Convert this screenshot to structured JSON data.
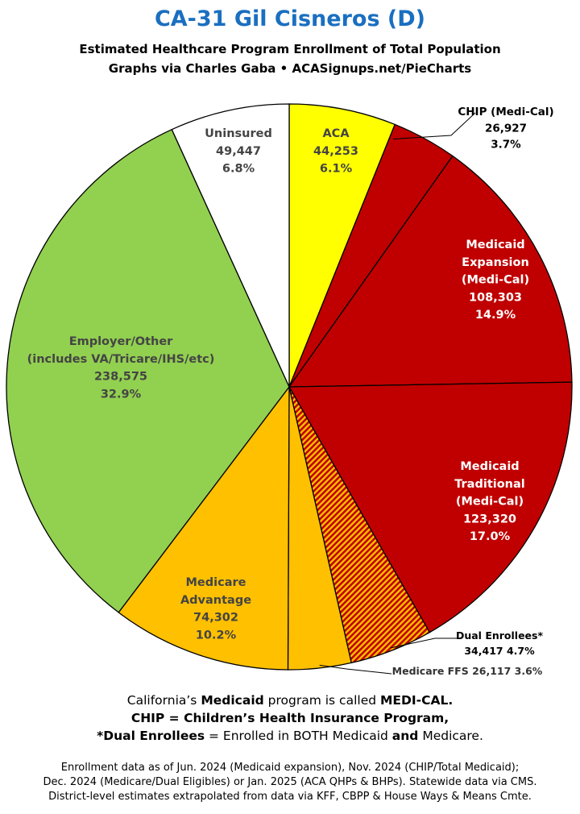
{
  "header": {
    "title": "CA-31 Gil Cisneros (D)",
    "subtitle_line1": "Estimated Healthcare Program Enrollment of Total Population",
    "subtitle_line2": "Graphs via Charles Gaba  •  ACASignups.net/PieCharts"
  },
  "chart_data": {
    "type": "pie",
    "title": "CA-31 Gil Cisneros (D)",
    "slices": [
      {
        "key": "aca",
        "label_lines": [
          "ACA"
        ],
        "value": 44253,
        "value_text": "44,253",
        "percent": "6.1%",
        "color": "#ffff00",
        "text_color": "#444444",
        "pattern": "none"
      },
      {
        "key": "chip",
        "label_lines": [
          "CHIP (Medi-Cal)"
        ],
        "value": 26927,
        "value_text": "26,927",
        "percent": "3.7%",
        "color": "#c00000",
        "text_color": "#000000",
        "pattern": "none"
      },
      {
        "key": "medicaid_expansion",
        "label_lines": [
          "Medicaid",
          "Expansion",
          "(Medi-Cal)"
        ],
        "value": 108303,
        "value_text": "108,303",
        "percent": "14.9%",
        "color": "#c00000",
        "text_color": "#ffffff",
        "pattern": "none"
      },
      {
        "key": "medicaid_traditional",
        "label_lines": [
          "Medicaid",
          "Traditional",
          "(Medi-Cal)"
        ],
        "value": 123320,
        "value_text": "123,320",
        "percent": "17.0%",
        "color": "#c00000",
        "text_color": "#ffffff",
        "pattern": "none"
      },
      {
        "key": "dual",
        "label_lines": [
          "Dual Enrollees*"
        ],
        "value": 34417,
        "value_text": "34,417",
        "percent": "4.7%",
        "color": "#c00000",
        "text_color": "#000000",
        "pattern": "stripes"
      },
      {
        "key": "medicare_ffs",
        "label_lines": [
          "Medicare FFS"
        ],
        "value": 26117,
        "value_text": "26,117",
        "percent": "3.6%",
        "color": "#ffc000",
        "text_color": "#333333",
        "pattern": "none"
      },
      {
        "key": "medicare_advantage",
        "label_lines": [
          "Medicare",
          "Advantage"
        ],
        "value": 74302,
        "value_text": "74,302",
        "percent": "10.2%",
        "color": "#ffc000",
        "text_color": "#444444",
        "pattern": "none"
      },
      {
        "key": "employer",
        "label_lines": [
          "Employer/Other",
          "(includes VA/Tricare/IHS/etc)"
        ],
        "value": 238575,
        "value_text": "238,575",
        "percent": "32.9%",
        "color": "#92d050",
        "text_color": "#444444",
        "pattern": "none"
      },
      {
        "key": "uninsured",
        "label_lines": [
          "Uninsured"
        ],
        "value": 49447,
        "value_text": "49,447",
        "percent": "6.8%",
        "color": "#ffffff",
        "text_color": "#444444",
        "pattern": "none"
      }
    ],
    "legend": "none"
  },
  "notes": {
    "line1_pre": "California’s ",
    "line1_b1": "Medicaid",
    "line1_mid": " program is called ",
    "line1_b2": "MEDI-CAL.",
    "line2": "CHIP = Children’s Health Insurance Program,",
    "line3_b1": "*Dual Enrollees",
    "line3_mid": " = Enrolled in BOTH Medicaid ",
    "line3_b2": "and",
    "line3_post": " Medicare."
  },
  "footer": {
    "line1": "Enrollment data as of Jun. 2024 (Medicaid expansion), Nov. 2024 (CHIP/Total Medicaid);",
    "line2": "Dec. 2024 (Medicare/Dual Eligibles) or Jan. 2025 (ACA QHPs & BHPs). Statewide data via CMS.",
    "line3": "District-level estimates extrapolated from data via KFF, CBPP & House Ways & Means Cmte."
  }
}
